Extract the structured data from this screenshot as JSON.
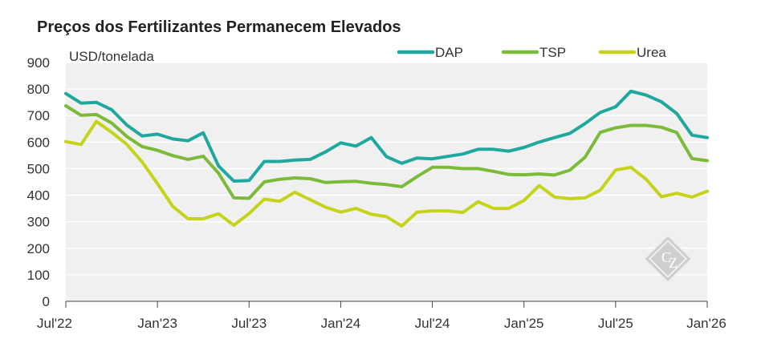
{
  "chart_data": {
    "type": "line",
    "title": "Preços dos Fertilizantes Permanecem Elevados",
    "ylabel": "USD/tonelada",
    "xlabel": "",
    "ylim": [
      0,
      900
    ],
    "yticks": [
      "0",
      "100",
      "200",
      "300",
      "400",
      "500",
      "600",
      "700",
      "800",
      "900"
    ],
    "xlim": [
      "2022-07",
      "2026-01"
    ],
    "xticks": [
      {
        "label": "Jul'22",
        "date": "2022-07"
      },
      {
        "label": "Jan'23",
        "date": "2023-01"
      },
      {
        "label": "Jul'23",
        "date": "2023-07"
      },
      {
        "label": "Jan'24",
        "date": "2024-01"
      },
      {
        "label": "Jul'24",
        "date": "2024-07"
      },
      {
        "label": "Jan'25",
        "date": "2025-01"
      },
      {
        "label": "Jul'25",
        "date": "2025-07"
      },
      {
        "label": "Jan'26",
        "date": "2026-01"
      }
    ],
    "grid": "horizontal",
    "legend_position": "top-right",
    "x": [
      "2022-07",
      "2022-08",
      "2022-09",
      "2022-10",
      "2022-11",
      "2022-12",
      "2023-01",
      "2023-02",
      "2023-03",
      "2023-04",
      "2023-05",
      "2023-06",
      "2023-07",
      "2023-08",
      "2023-09",
      "2023-10",
      "2023-11",
      "2023-12",
      "2024-01",
      "2024-02",
      "2024-03",
      "2024-04",
      "2024-05",
      "2024-06",
      "2024-07",
      "2024-08",
      "2024-09",
      "2024-10",
      "2024-11",
      "2024-12",
      "2025-01",
      "2025-02",
      "2025-03",
      "2025-04",
      "2025-05",
      "2025-06",
      "2025-07",
      "2025-08",
      "2025-09",
      "2025-10",
      "2025-11",
      "2025-12",
      "2026-01"
    ],
    "series": [
      {
        "name": "DAP",
        "color": "#1fa89e",
        "values": [
          783,
          747,
          750,
          722,
          664,
          623,
          630,
          612,
          605,
          635,
          510,
          453,
          455,
          527,
          527,
          532,
          535,
          563,
          597,
          585,
          617,
          545,
          520,
          540,
          537,
          546,
          555,
          573,
          573,
          566,
          580,
          600,
          617,
          633,
          670,
          712,
          733,
          792,
          777,
          752,
          708,
          626,
          617
        ]
      },
      {
        "name": "TSP",
        "color": "#7cba3a",
        "values": [
          737,
          701,
          704,
          672,
          621,
          583,
          569,
          549,
          535,
          547,
          483,
          390,
          388,
          450,
          460,
          465,
          462,
          448,
          451,
          452,
          445,
          440,
          432,
          470,
          505,
          505,
          500,
          500,
          490,
          478,
          477,
          480,
          476,
          494,
          543,
          637,
          654,
          663,
          663,
          656,
          636,
          538,
          530
        ]
      },
      {
        "name": "Urea",
        "color": "#c5d41a",
        "values": [
          602,
          591,
          678,
          637,
          591,
          525,
          444,
          358,
          311,
          311,
          330,
          287,
          331,
          385,
          377,
          411,
          383,
          355,
          336,
          350,
          328,
          319,
          284,
          336,
          341,
          341,
          335,
          375,
          350,
          350,
          380,
          436,
          393,
          387,
          390,
          419,
          495,
          505,
          460,
          394,
          407,
          393,
          415
        ]
      }
    ]
  },
  "brand": {
    "watermark_color": "#c9c9c9"
  }
}
